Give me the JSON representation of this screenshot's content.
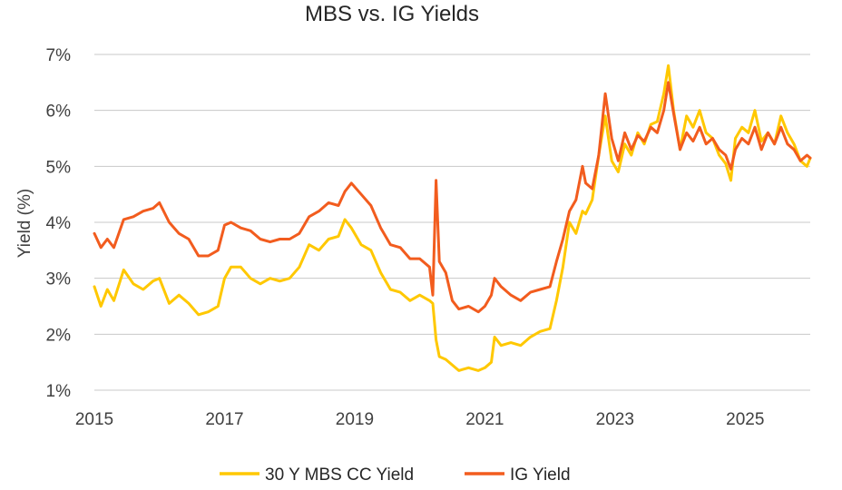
{
  "chart_data": {
    "type": "line",
    "title": "MBS vs. IG Yields",
    "xlabel": "",
    "ylabel": "Yield (%)",
    "xlim": [
      2015,
      2026
    ],
    "ylim": [
      1,
      7
    ],
    "x_ticks": [
      2015,
      2017,
      2019,
      2021,
      2023,
      2025
    ],
    "x_tick_labels": [
      "2015",
      "2017",
      "2019",
      "2021",
      "2023",
      "2025"
    ],
    "y_ticks": [
      1,
      2,
      3,
      4,
      5,
      6,
      7
    ],
    "y_tick_labels": [
      "1%",
      "2%",
      "3%",
      "4%",
      "5%",
      "6%",
      "7%"
    ],
    "grid": true,
    "legend_position": "bottom",
    "series": [
      {
        "name": "30 Y MBS CC Yield",
        "color": "#FFC800",
        "x": [
          2015.0,
          2015.1,
          2015.2,
          2015.3,
          2015.45,
          2015.6,
          2015.75,
          2015.9,
          2016.0,
          2016.15,
          2016.3,
          2016.45,
          2016.6,
          2016.75,
          2016.9,
          2017.0,
          2017.1,
          2017.25,
          2017.4,
          2017.55,
          2017.7,
          2017.85,
          2018.0,
          2018.15,
          2018.3,
          2018.45,
          2018.6,
          2018.75,
          2018.85,
          2018.95,
          2019.1,
          2019.25,
          2019.4,
          2019.55,
          2019.7,
          2019.85,
          2020.0,
          2020.15,
          2020.2,
          2020.25,
          2020.3,
          2020.4,
          2020.5,
          2020.6,
          2020.75,
          2020.9,
          2021.0,
          2021.1,
          2021.15,
          2021.25,
          2021.4,
          2021.55,
          2021.7,
          2021.85,
          2022.0,
          2022.1,
          2022.2,
          2022.3,
          2022.4,
          2022.5,
          2022.55,
          2022.65,
          2022.75,
          2022.85,
          2022.95,
          2023.05,
          2023.15,
          2023.25,
          2023.35,
          2023.45,
          2023.55,
          2023.65,
          2023.75,
          2023.82,
          2023.9,
          2024.0,
          2024.1,
          2024.2,
          2024.3,
          2024.4,
          2024.5,
          2024.6,
          2024.7,
          2024.78,
          2024.85,
          2024.95,
          2025.05,
          2025.15,
          2025.25,
          2025.35,
          2025.45,
          2025.55,
          2025.65,
          2025.75,
          2025.85,
          2025.95,
          2026.0
        ],
        "y": [
          2.85,
          2.5,
          2.8,
          2.6,
          3.15,
          2.9,
          2.8,
          2.95,
          3.0,
          2.55,
          2.7,
          2.55,
          2.35,
          2.4,
          2.5,
          3.0,
          3.2,
          3.2,
          3.0,
          2.9,
          3.0,
          2.95,
          3.0,
          3.2,
          3.6,
          3.5,
          3.7,
          3.75,
          4.05,
          3.9,
          3.6,
          3.5,
          3.1,
          2.8,
          2.75,
          2.6,
          2.7,
          2.6,
          2.55,
          1.9,
          1.6,
          1.55,
          1.45,
          1.35,
          1.4,
          1.35,
          1.4,
          1.5,
          1.95,
          1.8,
          1.85,
          1.8,
          1.95,
          2.05,
          2.1,
          2.6,
          3.2,
          4.0,
          3.8,
          4.2,
          4.15,
          4.4,
          5.2,
          5.9,
          5.1,
          4.9,
          5.4,
          5.2,
          5.6,
          5.4,
          5.75,
          5.8,
          6.3,
          6.8,
          6.0,
          5.3,
          5.9,
          5.7,
          6.0,
          5.6,
          5.5,
          5.2,
          5.05,
          4.75,
          5.5,
          5.7,
          5.6,
          6.0,
          5.45,
          5.6,
          5.4,
          5.9,
          5.6,
          5.4,
          5.1,
          5.0,
          5.15
        ]
      },
      {
        "name": "IG Yield",
        "color": "#F25C1E",
        "x": [
          2015.0,
          2015.1,
          2015.2,
          2015.3,
          2015.45,
          2015.6,
          2015.75,
          2015.9,
          2016.0,
          2016.15,
          2016.3,
          2016.45,
          2016.6,
          2016.75,
          2016.9,
          2017.0,
          2017.1,
          2017.25,
          2017.4,
          2017.55,
          2017.7,
          2017.85,
          2018.0,
          2018.15,
          2018.3,
          2018.45,
          2018.6,
          2018.75,
          2018.85,
          2018.95,
          2019.1,
          2019.25,
          2019.4,
          2019.55,
          2019.7,
          2019.85,
          2020.0,
          2020.15,
          2020.2,
          2020.25,
          2020.3,
          2020.4,
          2020.5,
          2020.6,
          2020.75,
          2020.9,
          2021.0,
          2021.1,
          2021.15,
          2021.25,
          2021.4,
          2021.55,
          2021.7,
          2021.85,
          2022.0,
          2022.1,
          2022.2,
          2022.3,
          2022.4,
          2022.5,
          2022.55,
          2022.65,
          2022.75,
          2022.85,
          2022.95,
          2023.05,
          2023.15,
          2023.25,
          2023.35,
          2023.45,
          2023.55,
          2023.65,
          2023.75,
          2023.82,
          2023.9,
          2024.0,
          2024.1,
          2024.2,
          2024.3,
          2024.4,
          2024.5,
          2024.6,
          2024.7,
          2024.78,
          2024.85,
          2024.95,
          2025.05,
          2025.15,
          2025.25,
          2025.35,
          2025.45,
          2025.55,
          2025.65,
          2025.75,
          2025.85,
          2025.95,
          2026.0
        ],
        "y": [
          3.8,
          3.55,
          3.7,
          3.55,
          4.05,
          4.1,
          4.2,
          4.25,
          4.35,
          4.0,
          3.8,
          3.7,
          3.4,
          3.4,
          3.5,
          3.95,
          4.0,
          3.9,
          3.85,
          3.7,
          3.65,
          3.7,
          3.7,
          3.8,
          4.1,
          4.2,
          4.35,
          4.3,
          4.55,
          4.7,
          4.5,
          4.3,
          3.9,
          3.6,
          3.55,
          3.35,
          3.35,
          3.2,
          2.7,
          4.75,
          3.3,
          3.1,
          2.6,
          2.45,
          2.5,
          2.4,
          2.5,
          2.7,
          3.0,
          2.85,
          2.7,
          2.6,
          2.75,
          2.8,
          2.85,
          3.3,
          3.7,
          4.2,
          4.4,
          5.0,
          4.7,
          4.6,
          5.2,
          6.3,
          5.5,
          5.1,
          5.6,
          5.3,
          5.55,
          5.45,
          5.7,
          5.6,
          6.0,
          6.5,
          5.95,
          5.3,
          5.6,
          5.45,
          5.7,
          5.4,
          5.5,
          5.3,
          5.2,
          4.95,
          5.3,
          5.5,
          5.4,
          5.7,
          5.3,
          5.6,
          5.4,
          5.7,
          5.4,
          5.3,
          5.1,
          5.2,
          5.15
        ]
      }
    ]
  }
}
